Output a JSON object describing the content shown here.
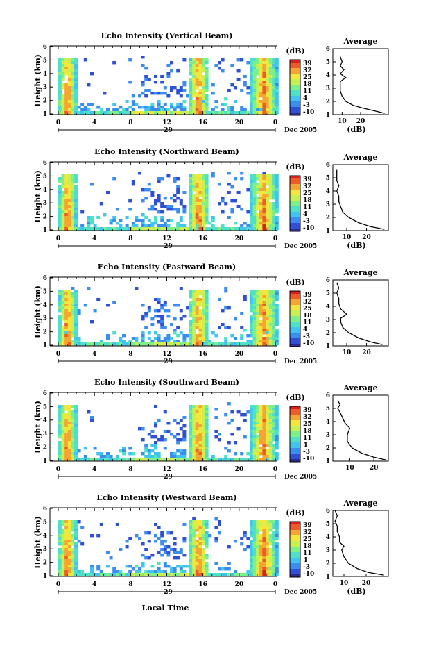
{
  "figure": {
    "x_axis_label": "Local Time",
    "date_label": "Dec 2005",
    "day_label": "29",
    "colorbar_unit": "(dB)",
    "average_title": "Average",
    "average_xlabel": "(dB)"
  },
  "colors": {
    "scale": [
      "#2b2b8c",
      "#2f4fd6",
      "#3b8ef0",
      "#42c4f0",
      "#4fe0c8",
      "#7ef08a",
      "#c8f050",
      "#f5e63c",
      "#f7a532",
      "#ef5a28",
      "#d92020"
    ]
  },
  "chart_data": [
    {
      "type": "heatmap",
      "title": "Echo Intensity (Vertical Beam)",
      "ylabel": "Height (km)",
      "xlabel": "Local Time",
      "x_ticks": [
        "0",
        "4",
        "8",
        "12",
        "16",
        "20",
        "0"
      ],
      "x_range_hours": [
        0,
        24
      ],
      "y_ticks": [
        "1",
        "2",
        "3",
        "4",
        "5",
        "6"
      ],
      "ylim_km": [
        1,
        6
      ],
      "colorbar": {
        "label": "(dB)",
        "ticks": [
          "-10",
          "-3",
          "4",
          "11",
          "18",
          "25",
          "32",
          "39"
        ],
        "range": [
          -10,
          39
        ]
      },
      "profile": {
        "title": "Average",
        "xlabel": "(dB)",
        "x_ticks": [
          "10",
          "20"
        ],
        "xlim": [
          5,
          35
        ],
        "y_ticks": [
          "1",
          "2",
          "3",
          "4",
          "5",
          "6"
        ],
        "height_km": [
          1.1,
          1.3,
          1.5,
          1.7,
          2.0,
          2.4,
          2.8,
          3.2,
          3.5,
          3.8,
          4.1,
          4.4,
          4.7,
          5.0,
          5.4
        ],
        "value_db": [
          33,
          27,
          21,
          16,
          12,
          10,
          9,
          9,
          9,
          12,
          9,
          11,
          9,
          10,
          9
        ]
      }
    },
    {
      "type": "heatmap",
      "title": "Echo Intensity (Northward Beam)",
      "ylabel": "Height (km)",
      "xlabel": "Local Time",
      "x_ticks": [
        "0",
        "4",
        "8",
        "12",
        "16",
        "20",
        "0"
      ],
      "x_range_hours": [
        0,
        24
      ],
      "y_ticks": [
        "1",
        "2",
        "3",
        "4",
        "5",
        "6"
      ],
      "ylim_km": [
        1,
        6
      ],
      "colorbar": {
        "label": "(dB)",
        "ticks": [
          "-10",
          "-3",
          "4",
          "11",
          "18",
          "25",
          "32",
          "39"
        ],
        "range": [
          -10,
          39
        ]
      },
      "profile": {
        "title": "Average",
        "xlabel": "(dB)",
        "x_ticks": [
          "10",
          "20"
        ],
        "xlim": [
          3,
          31
        ],
        "y_ticks": [
          "1",
          "2",
          "3",
          "4",
          "5",
          "6"
        ],
        "height_km": [
          1.1,
          1.3,
          1.6,
          2.0,
          2.4,
          2.8,
          3.2,
          3.6,
          4.0,
          4.4,
          4.8,
          5.2,
          5.6
        ],
        "value_db": [
          29,
          22,
          16,
          11,
          8,
          7,
          6,
          6,
          5,
          6,
          5,
          5,
          5
        ]
      }
    },
    {
      "type": "heatmap",
      "title": "Echo Intensity (Eastward Beam)",
      "ylabel": "Height (km)",
      "xlabel": "Local Time",
      "x_ticks": [
        "0",
        "4",
        "8",
        "12",
        "16",
        "20",
        "0"
      ],
      "x_range_hours": [
        0,
        24
      ],
      "y_ticks": [
        "1",
        "2",
        "3",
        "4",
        "5",
        "6"
      ],
      "ylim_km": [
        1,
        6
      ],
      "colorbar": {
        "label": "(dB)",
        "ticks": [
          "-10",
          "-3",
          "4",
          "11",
          "18",
          "25",
          "32",
          "39"
        ],
        "range": [
          -10,
          39
        ]
      },
      "profile": {
        "title": "Average",
        "xlabel": "",
        "x_ticks": [
          "10",
          "20"
        ],
        "xlim": [
          3,
          31
        ],
        "y_ticks": [
          "1",
          "2",
          "3",
          "4",
          "5",
          "6"
        ],
        "height_km": [
          1.1,
          1.3,
          1.6,
          2.0,
          2.4,
          2.8,
          3.1,
          3.4,
          3.8,
          4.2,
          4.6,
          5.0,
          5.4,
          5.8
        ],
        "value_db": [
          28,
          22,
          16,
          11,
          8,
          7,
          7,
          10,
          7,
          6,
          6,
          5,
          6,
          5
        ]
      }
    },
    {
      "type": "heatmap",
      "title": "Echo Intensity (Southward Beam)",
      "ylabel": "Height (km)",
      "xlabel": "Local Time",
      "x_ticks": [
        "0",
        "4",
        "8",
        "12",
        "16",
        "20",
        "0"
      ],
      "x_range_hours": [
        0,
        24
      ],
      "y_ticks": [
        "1",
        "2",
        "3",
        "4",
        "5",
        "6"
      ],
      "ylim_km": [
        1,
        6
      ],
      "colorbar": {
        "label": "(dB)",
        "ticks": [
          "-10",
          "-3",
          "4",
          "11",
          "18",
          "25",
          "32",
          "39"
        ],
        "range": [
          -10,
          39
        ]
      },
      "profile": {
        "title": "Average",
        "xlabel": "",
        "x_ticks": [
          "10",
          "20"
        ],
        "xlim": [
          3,
          26
        ],
        "y_ticks": [
          "1",
          "2",
          "3",
          "4",
          "5",
          "6"
        ],
        "height_km": [
          1.1,
          1.3,
          1.6,
          2.0,
          2.5,
          3.0,
          3.5,
          3.9,
          4.3,
          4.7,
          5.0,
          5.3,
          5.6
        ],
        "value_db": [
          25,
          20,
          15,
          11,
          9,
          9,
          10,
          8,
          7,
          6,
          5,
          6,
          5
        ]
      }
    },
    {
      "type": "heatmap",
      "title": "Echo Intensity (Westward Beam)",
      "ylabel": "Height (km)",
      "xlabel": "Local Time",
      "x_ticks": [
        "0",
        "4",
        "8",
        "12",
        "16",
        "20",
        "0"
      ],
      "x_range_hours": [
        0,
        24
      ],
      "y_ticks": [
        "1",
        "2",
        "3",
        "4",
        "5",
        "6"
      ],
      "ylim_km": [
        1,
        6
      ],
      "colorbar": {
        "label": "(dB)",
        "ticks": [
          "-10",
          "-3",
          "4",
          "11",
          "18",
          "25",
          "32",
          "39"
        ],
        "range": [
          -10,
          39
        ]
      },
      "profile": {
        "title": "Average",
        "xlabel": "(dB)",
        "x_ticks": [
          "10",
          "20"
        ],
        "xlim": [
          5,
          30
        ],
        "y_ticks": [
          "1",
          "2",
          "3",
          "4",
          "5",
          "6"
        ],
        "height_km": [
          1.1,
          1.3,
          1.6,
          2.0,
          2.5,
          3.0,
          3.3,
          3.6,
          4.0,
          4.4,
          4.8,
          5.2,
          5.6,
          6.0
        ],
        "value_db": [
          28,
          21,
          16,
          12,
          10,
          9,
          10,
          8,
          8,
          7,
          7,
          6,
          7,
          6
        ]
      }
    }
  ]
}
